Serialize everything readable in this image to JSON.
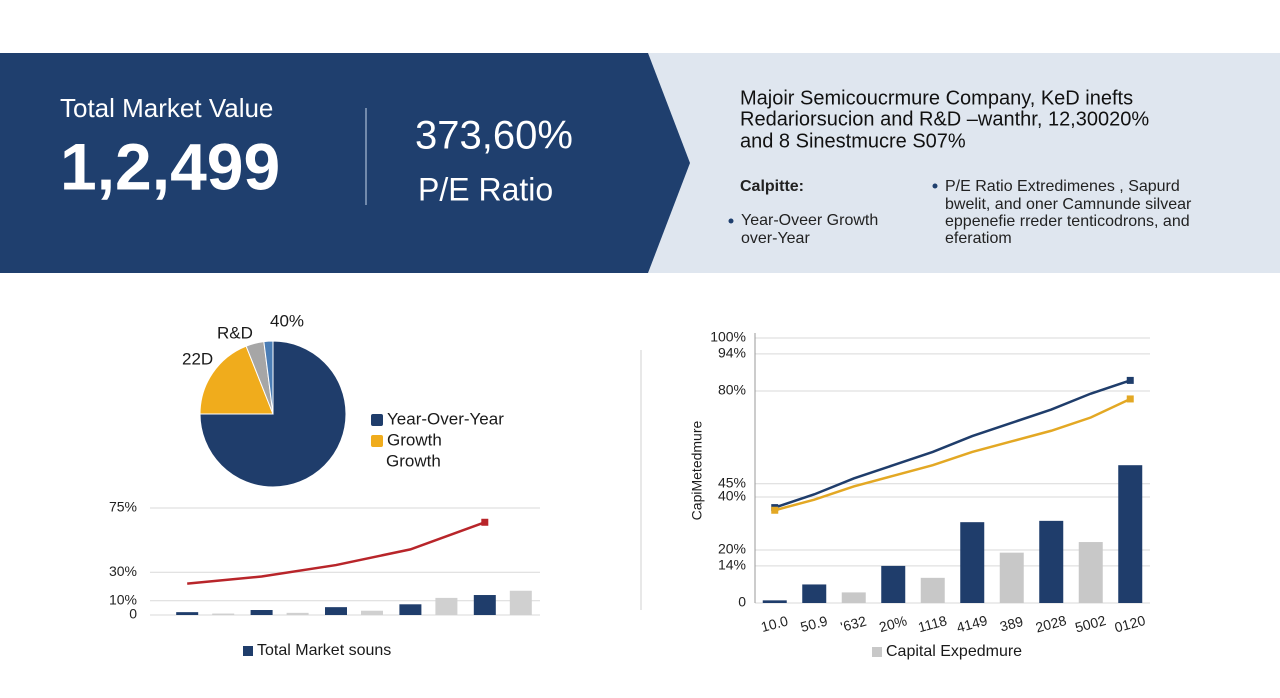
{
  "header": {
    "metric_label": "Total Market Value",
    "metric_value": "1,2,499",
    "ratio_value": "373,60%",
    "ratio_label": "P/E Ratio",
    "description": [
      "Majoir Semicoucrmure Company, KeD inefts",
      "Redariorsucion and R&D –wanthr, 12,30020%",
      "and 8  Sinestmucre S07%"
    ],
    "left_heading": "Calpitte:",
    "left_bullet": [
      "Year-Oveer Growth",
      "over-Year"
    ],
    "right_bullet": [
      "P/E Ratio Extredimenes , Sapurd",
      "bwelit, and oner Camnunde silvear",
      "eppenefie rreder tenticodrons, and",
      "eferatiom"
    ]
  },
  "chart_data": [
    {
      "type": "pie",
      "categories": [
        "Year-Over-Year",
        "Growth",
        null,
        null
      ],
      "values": [
        75,
        19,
        4,
        2
      ],
      "colors": [
        "#1f3d6b",
        "#f0ac1c",
        "#a6a6a6",
        "#4a7db5"
      ],
      "legend_note": "Growth",
      "annotations": [
        "R&D",
        "40%",
        "22D"
      ]
    },
    {
      "type": "bar",
      "categories": [
        null,
        null,
        null,
        null,
        null
      ],
      "series": [
        {
          "name": "Total Market souns",
          "color": "#1f3d6b",
          "values": [
            2,
            3.5,
            5.5,
            7.5,
            14
          ]
        },
        {
          "color": "#d0d0d0",
          "values": [
            1,
            1.5,
            3,
            12,
            17
          ]
        },
        {
          "type": "line",
          "color": "#b8252a",
          "values": [
            22,
            27,
            35,
            46,
            65
          ]
        }
      ],
      "ylim": [
        0,
        75
      ],
      "yticks": [
        0,
        {
          "value": 10,
          "label": "10%"
        },
        {
          "value": 30,
          "label": "30%"
        },
        {
          "value": 75,
          "label": "75%"
        }
      ],
      "grid": true
    },
    {
      "type": "bar",
      "y_label": "CapiMetedmure",
      "categories": [
        "10.0",
        "50.9",
        "'632",
        "20%",
        "1118",
        "4149",
        "389",
        "2028",
        "5002",
        "0120"
      ],
      "series": [
        {
          "color": "#1f3d6b",
          "values": [
            1,
            7,
            null,
            14,
            null,
            30.5,
            null,
            31,
            null,
            52
          ]
        },
        {
          "name": "Capital Expedmure",
          "color": "#c8c8c8",
          "values": [
            null,
            null,
            4,
            null,
            9.5,
            null,
            19,
            null,
            23,
            null
          ]
        },
        {
          "type": "line",
          "color": "#1f3d6b",
          "values": [
            36,
            41,
            47,
            52,
            57,
            63,
            68,
            73,
            79,
            84
          ]
        },
        {
          "type": "line",
          "color": "#e3a824",
          "values": [
            35,
            39,
            44,
            48,
            52,
            57,
            61,
            65,
            70,
            77
          ]
        }
      ],
      "ylim": [
        0,
        100
      ],
      "yticks": [
        0,
        {
          "value": 14,
          "label": "14%"
        },
        {
          "value": 20,
          "label": "20%"
        },
        {
          "value": 45,
          "label": "45%"
        },
        {
          "value": 40,
          "label": "40%"
        },
        {
          "value": 80,
          "label": "80%"
        },
        {
          "value": 94,
          "label": "94%"
        },
        {
          "value": 100,
          "label": "100%"
        }
      ],
      "grid": true
    }
  ]
}
